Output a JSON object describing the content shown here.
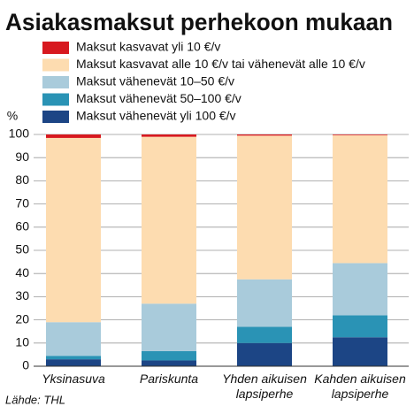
{
  "chart_data": {
    "type": "stacked_bar",
    "title": "Asiakasmaksut perhekoon mukaan",
    "y_label": "%",
    "source": "Lähde: THL",
    "categories": [
      "Yksinasuva",
      "Pariskunta",
      "Yhden aikuisen lapsiperhe",
      "Kahden aikuisen lapsiperhe"
    ],
    "series": [
      {
        "name": "Maksut kasvavat yli 10 €/v",
        "color": "#d7191f",
        "values": [
          1.5,
          1,
          0.5,
          0.3
        ]
      },
      {
        "name": "Maksut kasvavat alle 10 €/v tai vähenevät alle 10 €/v",
        "color": "#fddcb0",
        "values": [
          79.5,
          72,
          62,
          55.2
        ]
      },
      {
        "name": "Maksut vähenevät 10–50 €/v",
        "color": "#a9cbdb",
        "values": [
          14.5,
          20.5,
          20.5,
          22.5
        ]
      },
      {
        "name": "Maksut vähenevät 50–100 €/v",
        "color": "#2a93b5",
        "values": [
          1.5,
          4,
          7,
          9.5
        ]
      },
      {
        "name": "Maksut vähenevät yli 100 €/v",
        "color": "#1c4585",
        "values": [
          3,
          2.5,
          10,
          12.5
        ]
      }
    ],
    "ylim": [
      0,
      100
    ],
    "yticks": [
      0,
      10,
      20,
      30,
      40,
      50,
      60,
      70,
      80,
      90,
      100
    ],
    "grid": true
  }
}
